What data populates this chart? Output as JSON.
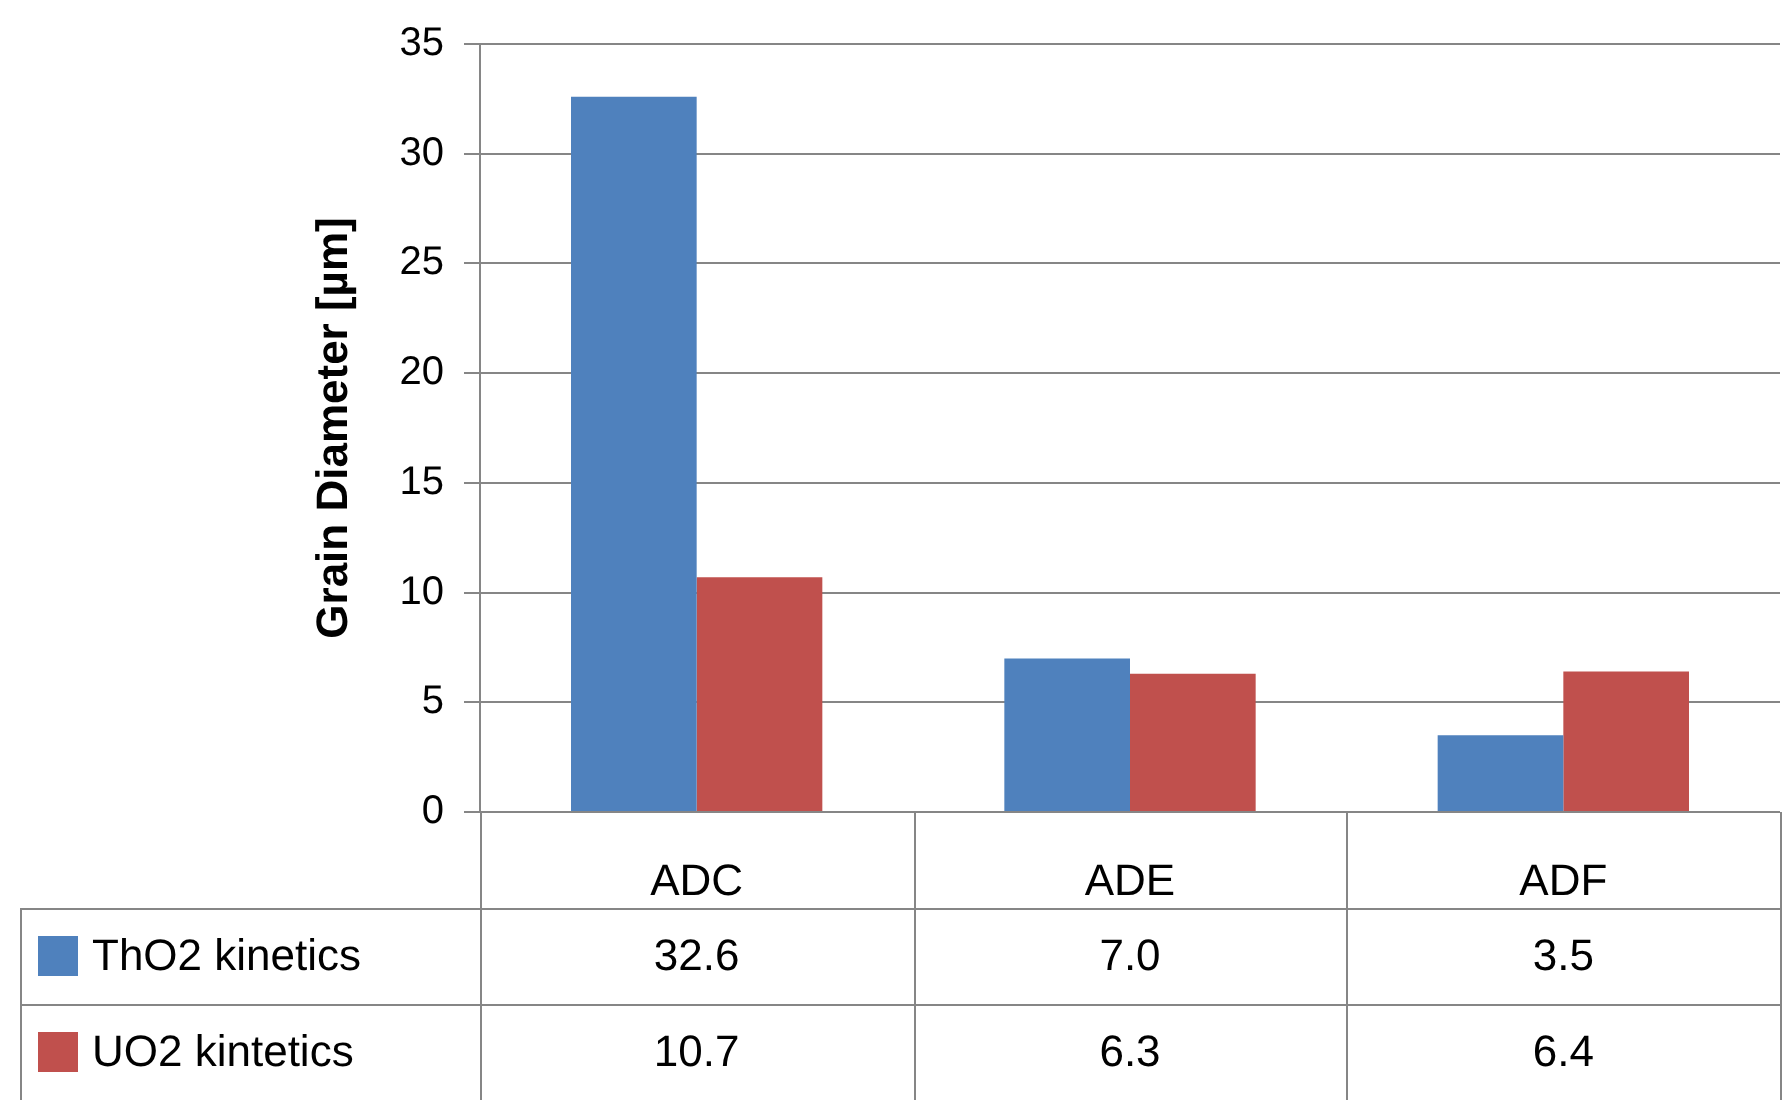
{
  "chart_data": {
    "type": "bar",
    "ylabel": "Grain Diameter [µm]",
    "categories": [
      "ADC",
      "ADE",
      "ADF"
    ],
    "series": [
      {
        "name": "ThO2 kinetics",
        "color": "#4f81bd",
        "values": [
          32.6,
          7.0,
          3.5
        ],
        "value_labels": [
          "32.6",
          "7.0",
          "3.5"
        ]
      },
      {
        "name": "UO2 kintetics",
        "color": "#c0504d",
        "values": [
          10.7,
          6.3,
          6.4
        ],
        "value_labels": [
          "10.7",
          "6.3",
          "6.4"
        ]
      }
    ],
    "ylim": [
      0,
      35
    ],
    "yticks": [
      0,
      5,
      10,
      15,
      20,
      25,
      30,
      35
    ],
    "grid": "y",
    "legend": "bottom"
  }
}
